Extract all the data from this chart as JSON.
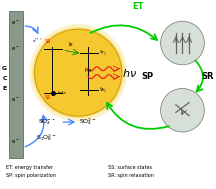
{
  "bg_color": "#ffffff",
  "electrode_color": "#8a9a8a",
  "green_arrow_color": "#00cc00",
  "blue_arrow_color": "#4488ff",
  "red_wave_color": "#ee2222",
  "cds_color": "#f5c830",
  "sphere_color_outer": "#b8c4b8",
  "sphere_color_inner": "#d0dcd0",
  "legend_et": "ET: energy transfer",
  "legend_ss": "SS: surface states",
  "legend_sp": "SP: spin polarization",
  "legend_sr": "SR: spin relaxation"
}
